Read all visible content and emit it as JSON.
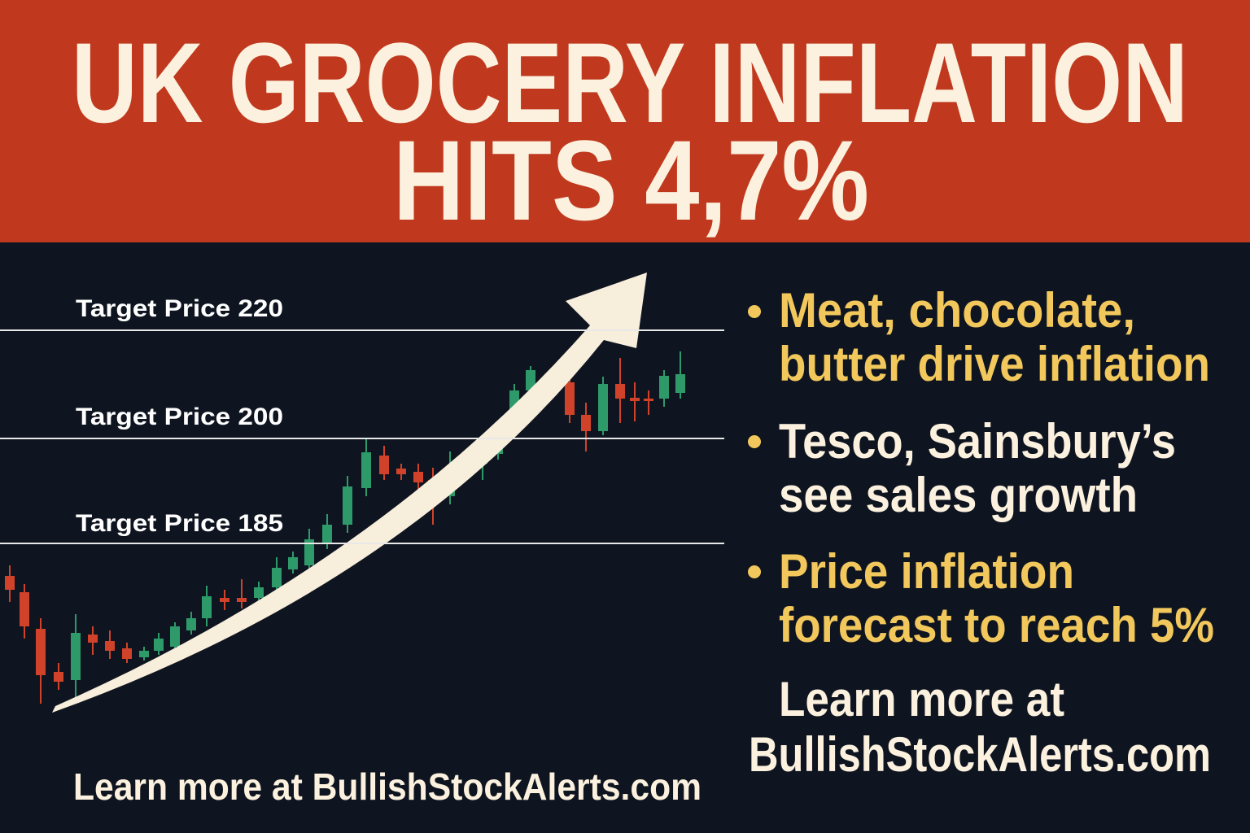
{
  "header": {
    "title": [
      "UK GROCERY INFLATION",
      "HITS 4,7%"
    ]
  },
  "chart": {
    "target_lines": [
      "Target Price 220",
      "Target Price 200",
      "Target Price 185"
    ],
    "footer": "Learn more at BullishStockAlerts.com"
  },
  "bullets": [
    {
      "lines": [
        "Meat, chocolate,",
        "butter drive inflation"
      ]
    },
    {
      "lines": [
        "Tesco, Sainsbury’s",
        "see sales growth"
      ]
    },
    {
      "lines": [
        "Price inflation",
        "forecast to reach 5%"
      ]
    }
  ],
  "cta": [
    "Learn more at",
    "BullishStockAlerts.com"
  ]
}
